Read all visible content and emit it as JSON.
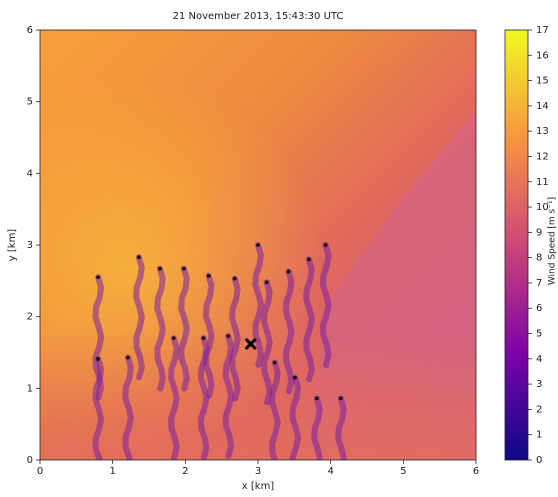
{
  "chart_data": {
    "type": "scatter",
    "title": "21 November 2013, 15:43:30 UTC",
    "x_label": "x [km]",
    "y_label": "y [km]",
    "xlim": [
      0,
      6
    ],
    "xticks": [
      0,
      1,
      2,
      3,
      4,
      5,
      6
    ],
    "ylim": [
      0,
      6
    ],
    "yticks": [
      0,
      1,
      2,
      3,
      4,
      5,
      6
    ],
    "series": [
      {
        "color": "#000000",
        "marker": "dot",
        "x": [
          0.8,
          1.36,
          1.65,
          1.98,
          2.32,
          2.68,
          3.0,
          3.12,
          3.42,
          3.7,
          3.93,
          0.8,
          1.21,
          1.84,
          2.25,
          2.59,
          3.23,
          3.51,
          3.81,
          4.14
        ],
        "values": [
          2.55,
          2.83,
          2.67,
          2.67,
          2.57,
          2.53,
          3.0,
          2.48,
          2.63,
          2.8,
          3.0,
          1.41,
          1.43,
          1.7,
          1.7,
          1.73,
          1.36,
          1.15,
          0.86,
          0.86
        ]
      },
      {
        "color": "#000000",
        "marker": "x",
        "x": [
          2.9
        ],
        "values": [
          1.62
        ]
      }
    ],
    "colorbar": {
      "label": "Wind Speed [m s⁻¹]",
      "lim": [
        0,
        17
      ],
      "ticks": [
        0,
        1,
        2,
        3,
        4,
        5,
        6,
        7,
        8,
        9,
        10,
        11,
        12,
        13,
        14,
        15,
        16,
        17
      ],
      "colors": [
        "#0d0887",
        "#7e03a8",
        "#cc4778",
        "#f89540",
        "#f0f921"
      ]
    }
  }
}
